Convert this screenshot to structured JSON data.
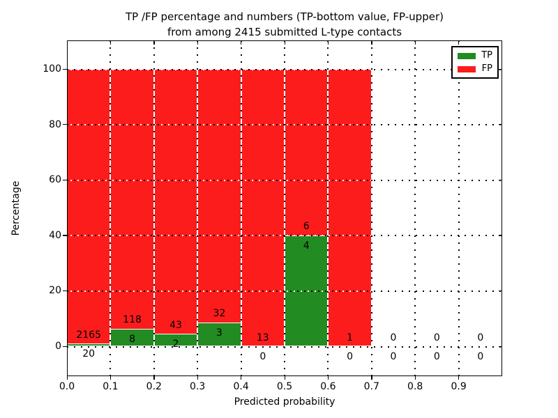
{
  "title": {
    "line1": "TP /FP percentage and numbers (TP-bottom value, FP-upper)",
    "line2": "from among 2415 submitted L-type contacts"
  },
  "y_axis": {
    "label": "Percentage",
    "tick_values": [
      0,
      20,
      40,
      60,
      80,
      100
    ],
    "tick_labels": [
      "0",
      "20",
      "40",
      "60",
      "80",
      "100"
    ]
  },
  "x_axis": {
    "label": "Predicted probability",
    "tick_values": [
      0.0,
      0.1,
      0.2,
      0.3,
      0.4,
      0.5,
      0.6,
      0.7,
      0.8,
      0.9
    ],
    "tick_labels": [
      "0.0",
      "0.1",
      "0.2",
      "0.3",
      "0.4",
      "0.5",
      "0.6",
      "0.7",
      "0.8",
      "0.9"
    ]
  },
  "legend": {
    "position": "upper right",
    "items": [
      {
        "label": "TP",
        "color": "#228b22"
      },
      {
        "label": "FP",
        "color": "#fc1c1c"
      }
    ]
  },
  "colors": {
    "tp_green": "#228b22",
    "fp_red": "#fc1c1c",
    "bar_edge": "#ffffff",
    "grid_black": "#000000",
    "grid_white": "#ffffff",
    "background": "#ffffff"
  },
  "chart_data": {
    "type": "bar",
    "stacked": true,
    "normalized_to_percent": 100,
    "title": "TP /FP percentage and numbers (TP-bottom value, FP-upper) from among 2415 submitted L-type contacts",
    "xlabel": "Predicted probability",
    "ylabel": "Percentage",
    "xlim": [
      0.0,
      1.0
    ],
    "ylim": [
      -11,
      110
    ],
    "grid": true,
    "bin_width": 0.1,
    "bin_starts": [
      0.0,
      0.1,
      0.2,
      0.3,
      0.4,
      0.5,
      0.6,
      0.7,
      0.8,
      0.9
    ],
    "series": [
      {
        "name": "TP",
        "color": "#228b22",
        "counts": [
          20,
          8,
          2,
          3,
          0,
          4,
          0,
          0,
          0,
          0
        ]
      },
      {
        "name": "FP",
        "color": "#fc1c1c",
        "counts": [
          2165,
          118,
          43,
          32,
          13,
          6,
          1,
          0,
          0,
          0
        ]
      }
    ],
    "tp_percent_of_bin": [
      0.92,
      6.35,
      4.44,
      8.57,
      0.0,
      40.0,
      0.0,
      0,
      0,
      0
    ],
    "fp_percent_of_bin": [
      99.08,
      93.65,
      95.56,
      91.43,
      100.0,
      60.0,
      100.0,
      0,
      0,
      0
    ],
    "annotation_rule": "FP count printed above TP/FP boundary, TP count printed below boundary"
  }
}
